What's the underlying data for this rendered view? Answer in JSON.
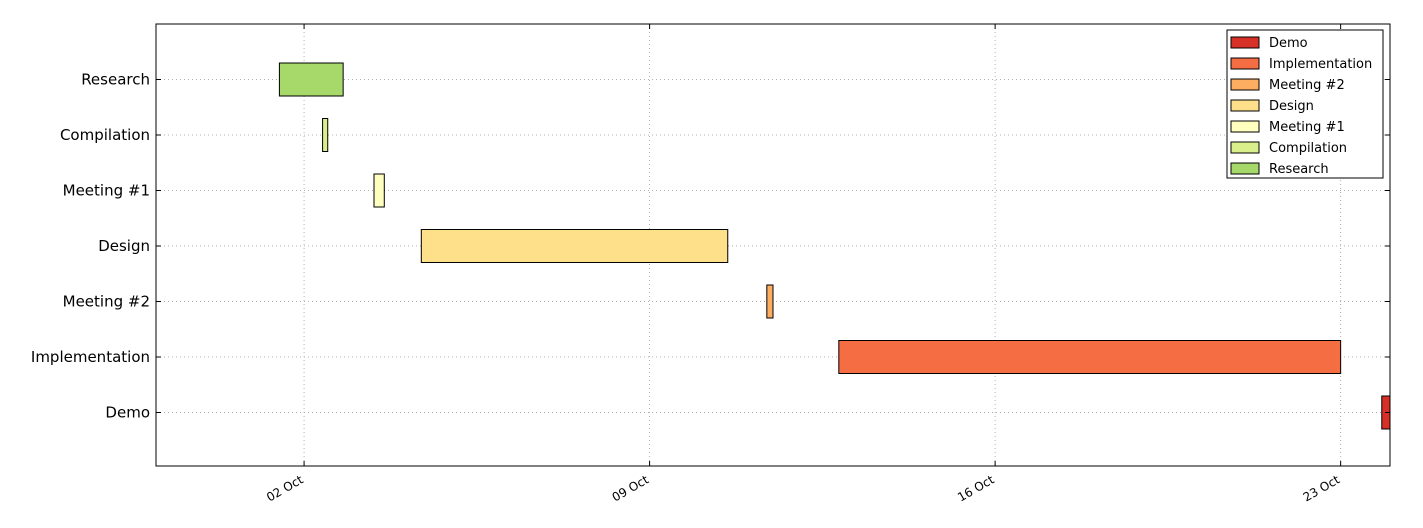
{
  "chart_data": {
    "type": "gantt",
    "title": "",
    "xlabel": "",
    "ylabel": "",
    "x_axis": {
      "kind": "date",
      "ticks": [
        "02 Oct",
        "09 Oct",
        "16 Oct",
        "23 Oct"
      ],
      "range": [
        "2014-09-29",
        "2014-10-24"
      ]
    },
    "grid": true,
    "legend_position": "top-right",
    "tasks": [
      {
        "name": "Research",
        "start": "2014-10-01T12:00",
        "end": "2014-10-02T19:00",
        "color": "#a6d96a"
      },
      {
        "name": "Compilation",
        "start": "2014-10-02T09:00",
        "end": "2014-10-02T11:30",
        "color": "#d9ef8b"
      },
      {
        "name": "Meeting #1",
        "start": "2014-10-03T10:00",
        "end": "2014-10-03T15:00",
        "color": "#ffffbf"
      },
      {
        "name": "Design",
        "start": "2014-10-04T09:00",
        "end": "2014-10-10T14:00",
        "color": "#fee08b"
      },
      {
        "name": "Meeting #2",
        "start": "2014-10-11T09:00",
        "end": "2014-10-11T12:00",
        "color": "#fdae61"
      },
      {
        "name": "Implementation",
        "start": "2014-10-12T20:00",
        "end": "2014-10-23T00:00",
        "color": "#f46d43"
      },
      {
        "name": "Demo",
        "start": "2014-10-23T20:00",
        "end": "2014-10-24T00:00",
        "color": "#d73027"
      }
    ],
    "legend": [
      "Demo",
      "Implementation",
      "Meeting #2",
      "Design",
      "Meeting #1",
      "Compilation",
      "Research"
    ]
  }
}
